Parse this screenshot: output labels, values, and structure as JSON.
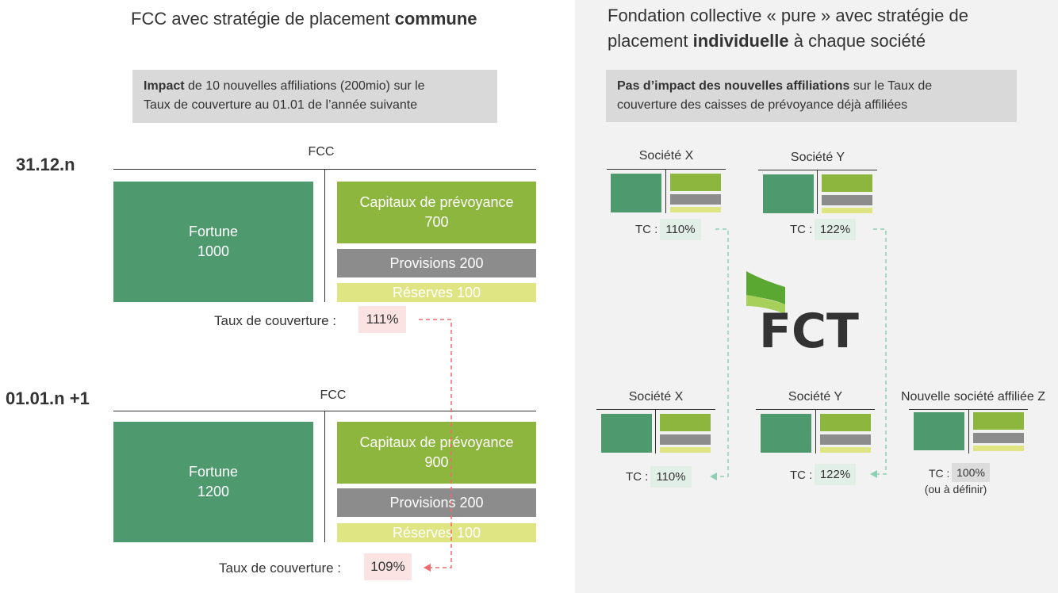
{
  "left": {
    "title_pre": "FCC avec stratégie de placement ",
    "title_bold": "commune",
    "info_bold": "Impact",
    "info_line1_rest": " de 10 nouvelles affiliations (200mio) sur le",
    "info_line2": "Taux de couverture au 01.01 de l’année suivante",
    "section1": {
      "date": "31.12.n",
      "label": "FCC",
      "fortune_label": "Fortune",
      "fortune_value": "1000",
      "capitaux_label": "Capitaux de prévoyance",
      "capitaux_value": "700",
      "provisions": "Provisions 200",
      "reserves": "Réserves 100",
      "taux_label": "Taux de couverture :",
      "taux_value": "111%"
    },
    "section2": {
      "date": "01.01.n +1",
      "label": "FCC",
      "fortune_label": "Fortune",
      "fortune_value": "1200",
      "capitaux_label": "Capitaux de prévoyance",
      "capitaux_value": "900",
      "provisions": "Provisions 200",
      "reserves": "Réserves 100",
      "taux_label": "Taux de couverture :",
      "taux_value": "109%"
    }
  },
  "right": {
    "title_line1": "Fondation collective « pure » avec stratégie de",
    "title_line2_pre": "placement ",
    "title_line2_bold": "individuelle",
    "title_line2_post": " à chaque société",
    "info_bold": "Pas d’impact des nouvelles affiliations",
    "info_line1_rest": " sur le Taux de",
    "info_line2": "couverture des caisses de prévoyance déjà affiliées",
    "logo_text": "FCT",
    "top": [
      {
        "name": "Société X",
        "tc_label": "TC :",
        "tc_value": "110%"
      },
      {
        "name": "Société Y",
        "tc_label": "TC :",
        "tc_value": "122%"
      }
    ],
    "bottom": [
      {
        "name": "Société X",
        "tc_label": "TC :",
        "tc_value": "110%"
      },
      {
        "name": "Société Y",
        "tc_label": "TC :",
        "tc_value": "122%"
      },
      {
        "name": "Nouvelle société affiliée Z",
        "tc_label": "TC :",
        "tc_value": "100%",
        "note": "(ou à définir)"
      }
    ]
  },
  "colors": {
    "fortune": "#4e9a6e",
    "capitaux": "#8db63e",
    "provisions": "#8c8c8c",
    "reserves": "#e0e584",
    "red_arrow": "#ee6b6b",
    "green_arrow": "#8fcfb4",
    "right_bg": "#f2f2f2"
  }
}
